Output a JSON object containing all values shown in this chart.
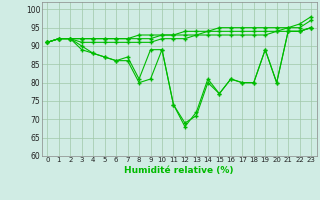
{
  "x": [
    0,
    1,
    2,
    3,
    4,
    5,
    6,
    7,
    8,
    9,
    10,
    11,
    12,
    13,
    14,
    15,
    16,
    17,
    18,
    19,
    20,
    21,
    22,
    23
  ],
  "line1": [
    91,
    92,
    92,
    92,
    92,
    92,
    92,
    92,
    93,
    93,
    93,
    93,
    94,
    94,
    94,
    95,
    95,
    95,
    95,
    95,
    95,
    95,
    96,
    98
  ],
  "line2": [
    91,
    92,
    92,
    92,
    92,
    92,
    92,
    92,
    92,
    92,
    93,
    93,
    93,
    93,
    94,
    94,
    94,
    94,
    94,
    94,
    94,
    95,
    95,
    97
  ],
  "line3": [
    91,
    92,
    92,
    91,
    91,
    91,
    91,
    91,
    91,
    91,
    92,
    92,
    92,
    93,
    93,
    93,
    93,
    93,
    93,
    93,
    94,
    94,
    94,
    95
  ],
  "line4": [
    91,
    92,
    92,
    90,
    88,
    87,
    86,
    87,
    81,
    89,
    89,
    74,
    69,
    71,
    80,
    77,
    81,
    80,
    80,
    89,
    80,
    94,
    94,
    95
  ],
  "line5": [
    91,
    92,
    92,
    89,
    88,
    87,
    86,
    86,
    80,
    81,
    89,
    74,
    68,
    72,
    81,
    77,
    81,
    80,
    80,
    89,
    80,
    94,
    94,
    95
  ],
  "line_color": "#00bb00",
  "bg_color": "#d0ece4",
  "grid_color": "#a0c8a8",
  "xlabel": "Humidité relative (%)",
  "ylim": [
    60,
    102
  ],
  "yticks": [
    60,
    65,
    70,
    75,
    80,
    85,
    90,
    95,
    100
  ],
  "xticks": [
    0,
    1,
    2,
    3,
    4,
    5,
    6,
    7,
    8,
    9,
    10,
    11,
    12,
    13,
    14,
    15,
    16,
    17,
    18,
    19,
    20,
    21,
    22,
    23
  ]
}
